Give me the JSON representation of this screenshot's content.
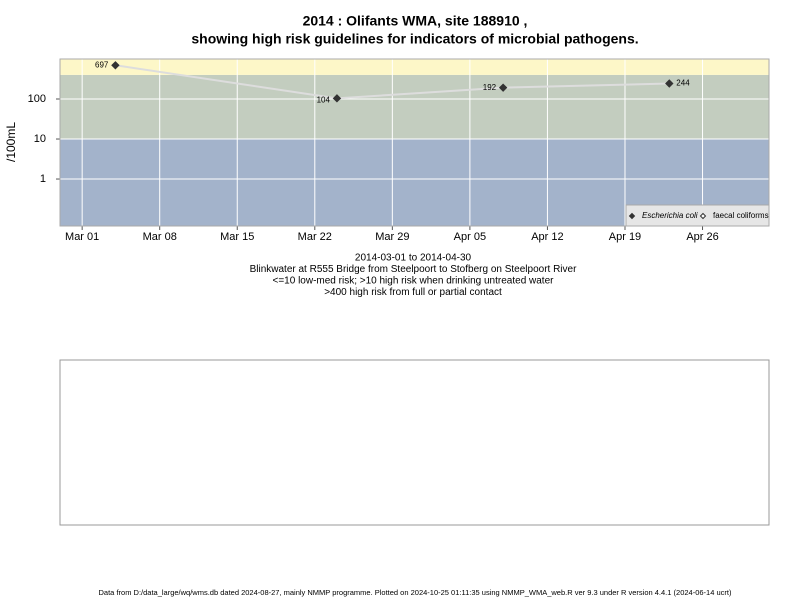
{
  "chart_data": {
    "type": "line",
    "title": "2014 : Olifants WMA, site 188910 ,",
    "subtitle": "showing high risk guidelines for indicators of microbial pathogens.",
    "y_label": "/100mL",
    "x": [
      "2014-03-04",
      "2014-03-24",
      "2014-04-08",
      "2014-04-23"
    ],
    "series": [
      {
        "name": "Escherichia coli",
        "color": "#333333",
        "values": [
          697,
          104,
          192,
          244
        ]
      },
      {
        "name": "faecal coliforms",
        "color": "#333333",
        "values": [
          null,
          null,
          null,
          null
        ]
      }
    ],
    "line_color": "#dddddd",
    "xlim": [
      "2014-02-27",
      "2014-05-02"
    ],
    "xticks": [
      {
        "value": "2014-03-01",
        "label": "Mar 01"
      },
      {
        "value": "2014-03-08",
        "label": "Mar 08"
      },
      {
        "value": "2014-03-15",
        "label": "Mar 15"
      },
      {
        "value": "2014-03-22",
        "label": "Mar 22"
      },
      {
        "value": "2014-03-29",
        "label": "Mar 29"
      },
      {
        "value": "2014-04-05",
        "label": "Apr 05"
      },
      {
        "value": "2014-04-12",
        "label": "Apr 12"
      },
      {
        "value": "2014-04-19",
        "label": "Apr 19"
      },
      {
        "value": "2014-04-26",
        "label": "Apr 26"
      }
    ],
    "ylim": [
      0.067,
      1000
    ],
    "yticks": [
      1,
      10,
      100
    ],
    "log_y": true,
    "grid": true,
    "thresholds": [
      10,
      400
    ],
    "band_colors": [
      "#a3b3cb",
      "#c3cdbf",
      "#fdf7c8"
    ],
    "legend_position": "bottom-right",
    "captions": [
      "2014-03-01 to 2014-04-30",
      "Blinkwater at R555 Bridge from Steelpoort to Stofberg on Steelpoort River",
      "<=10 low-med risk; >10 high risk when drinking untreated water",
      ">400 high risk from full or partial contact"
    ],
    "footer": "Data from D:/data_large/wq/wms.db dated 2024-08-27, mainly NMMP programme. Plotted on 2024-10-25 01:11:35 using NMMP_WMA_web.R ver 9.3 under R version 4.4.1 (2024-06-14 ucrt)"
  }
}
